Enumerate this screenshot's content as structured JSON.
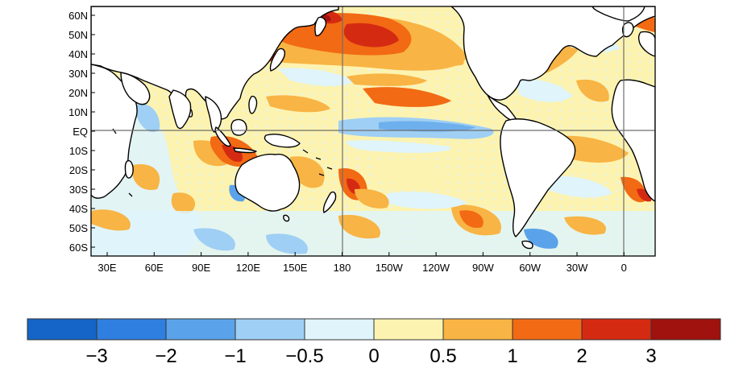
{
  "map": {
    "lat_labels": [
      "60N",
      "50N",
      "40N",
      "30N",
      "20N",
      "10N",
      "EQ",
      "10S",
      "20S",
      "30S",
      "40S",
      "50S",
      "60S"
    ],
    "lon_labels": [
      "30E",
      "60E",
      "90E",
      "120E",
      "150E",
      "180",
      "150W",
      "120W",
      "90W",
      "60W",
      "30W",
      "0"
    ],
    "land_color": "#ffffff",
    "coast_color": "#000000"
  },
  "colorbar": {
    "bins": [
      {
        "color": "#1565c8"
      },
      {
        "color": "#2f7fe0"
      },
      {
        "color": "#5aa3ea"
      },
      {
        "color": "#9fcff4"
      },
      {
        "color": "#dff4fb"
      },
      {
        "color": "#fdf3b0"
      },
      {
        "color": "#f8b444"
      },
      {
        "color": "#f26a14"
      },
      {
        "color": "#d52a12"
      },
      {
        "color": "#a0120e"
      }
    ],
    "tick_labels": [
      "−3",
      "−2",
      "−1",
      "−0.5",
      "0",
      "0.5",
      "1",
      "2",
      "3"
    ]
  }
}
